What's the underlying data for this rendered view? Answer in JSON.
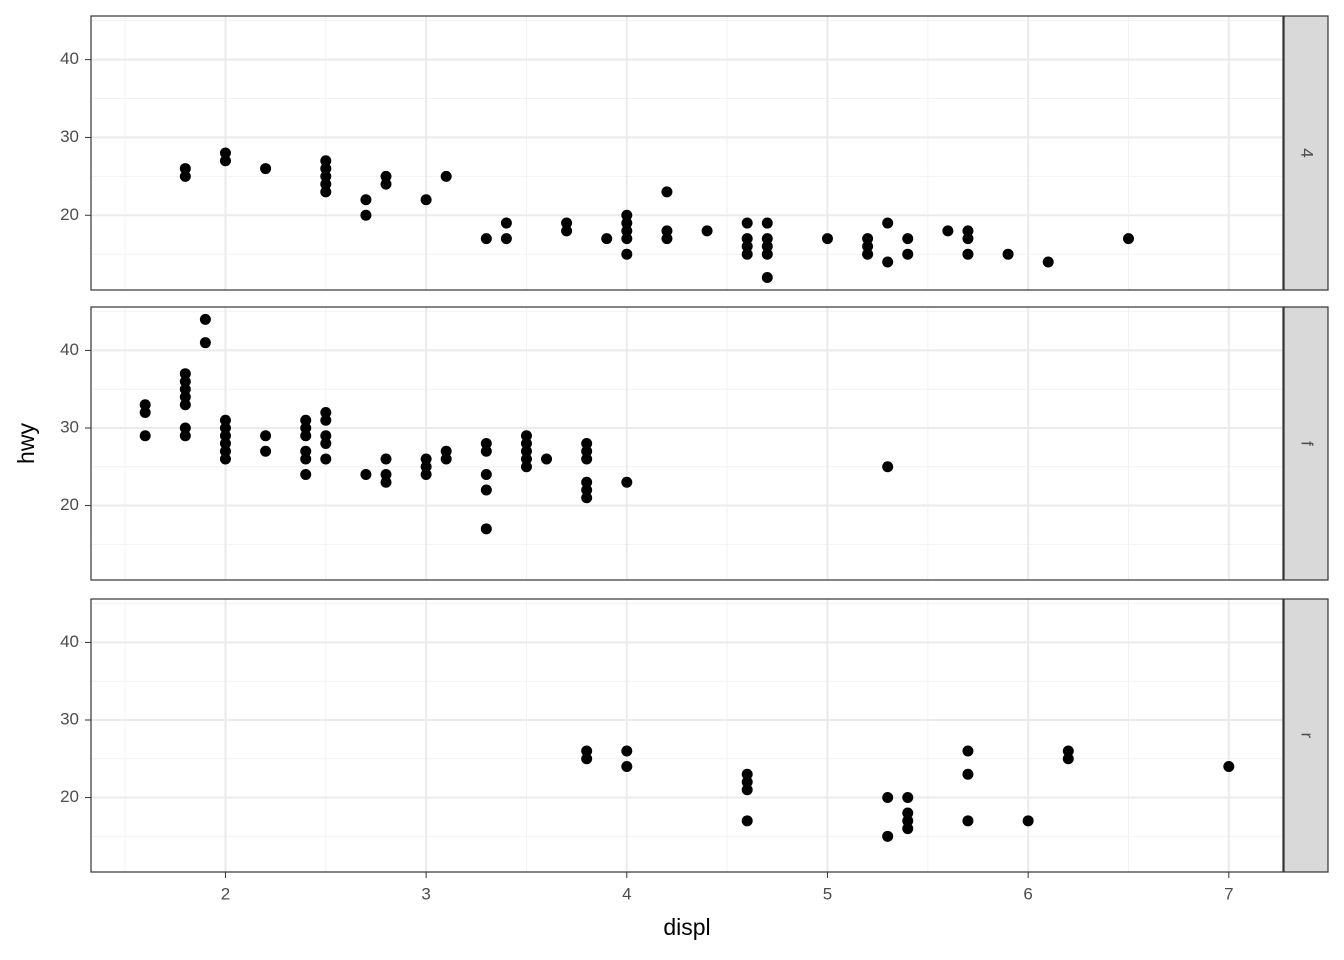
{
  "chart_data": [
    {
      "type": "scatter",
      "facet": "4",
      "color": "#000000",
      "grid": true,
      "xlim": [
        1.33,
        7.27
      ],
      "ylim": [
        10.4,
        45.6
      ],
      "xticks": [
        2,
        3,
        4,
        5,
        6,
        7
      ],
      "yticks": [
        20,
        30,
        40
      ],
      "x": [
        1.8,
        1.8,
        2.0,
        2.0,
        2.2,
        2.5,
        2.5,
        2.5,
        2.5,
        2.5,
        2.7,
        2.7,
        2.8,
        2.8,
        3.0,
        3.1,
        3.3,
        3.4,
        3.4,
        3.7,
        3.7,
        3.9,
        4.0,
        4.0,
        4.0,
        4.0,
        4.0,
        4.2,
        4.2,
        4.2,
        4.4,
        4.6,
        4.6,
        4.6,
        4.6,
        4.7,
        4.7,
        4.7,
        4.7,
        4.7,
        5.0,
        5.2,
        5.2,
        5.2,
        5.3,
        5.3,
        5.4,
        5.4,
        5.6,
        5.7,
        5.7,
        5.7,
        5.9,
        6.1,
        6.5
      ],
      "y": [
        26,
        25,
        28,
        27,
        26,
        27,
        26,
        25,
        24,
        23,
        22,
        20,
        25,
        24,
        22,
        25,
        17,
        19,
        17,
        19,
        18,
        17,
        20,
        19,
        18,
        17,
        15,
        23,
        18,
        17,
        18,
        19,
        17,
        16,
        15,
        19,
        17,
        16,
        15,
        12,
        17,
        17,
        16,
        15,
        19,
        14,
        17,
        15,
        18,
        18,
        17,
        15,
        15,
        14,
        17
      ]
    },
    {
      "type": "scatter",
      "facet": "f",
      "color": "#000000",
      "grid": true,
      "y_label": "hwy",
      "xlim": [
        1.33,
        7.27
      ],
      "ylim": [
        10.4,
        45.6
      ],
      "xticks": [
        2,
        3,
        4,
        5,
        6,
        7
      ],
      "yticks": [
        20,
        30,
        40
      ],
      "x": [
        1.6,
        1.6,
        1.6,
        1.8,
        1.8,
        1.8,
        1.8,
        1.8,
        1.8,
        1.8,
        1.9,
        1.9,
        2.0,
        2.0,
        2.0,
        2.0,
        2.0,
        2.0,
        2.2,
        2.2,
        2.4,
        2.4,
        2.4,
        2.4,
        2.4,
        2.4,
        2.5,
        2.5,
        2.5,
        2.5,
        2.5,
        2.7,
        2.8,
        2.8,
        2.8,
        3.0,
        3.0,
        3.0,
        3.1,
        3.1,
        3.3,
        3.3,
        3.3,
        3.3,
        3.3,
        3.5,
        3.5,
        3.5,
        3.5,
        3.5,
        3.6,
        3.8,
        3.8,
        3.8,
        3.8,
        3.8,
        3.8,
        4.0,
        5.3
      ],
      "y": [
        33,
        32,
        29,
        37,
        36,
        35,
        34,
        33,
        30,
        29,
        44,
        41,
        31,
        30,
        29,
        28,
        27,
        26,
        29,
        27,
        31,
        30,
        29,
        27,
        26,
        24,
        32,
        31,
        29,
        28,
        26,
        24,
        26,
        24,
        23,
        26,
        25,
        24,
        27,
        26,
        28,
        27,
        24,
        22,
        17,
        29,
        28,
        27,
        26,
        25,
        26,
        28,
        27,
        26,
        23,
        22,
        21,
        23,
        25
      ]
    },
    {
      "type": "scatter",
      "facet": "r",
      "color": "#000000",
      "grid": true,
      "x_label": "displ",
      "xlim": [
        1.33,
        7.27
      ],
      "ylim": [
        10.4,
        45.6
      ],
      "xticks": [
        2,
        3,
        4,
        5,
        6,
        7
      ],
      "yticks": [
        20,
        30,
        40
      ],
      "x": [
        3.8,
        3.8,
        4.0,
        4.0,
        4.6,
        4.6,
        4.6,
        4.6,
        5.3,
        5.3,
        5.4,
        5.4,
        5.4,
        5.4,
        5.7,
        5.7,
        5.7,
        6.0,
        6.2,
        6.2,
        7.0
      ],
      "y": [
        26,
        25,
        26,
        24,
        23,
        22,
        21,
        17,
        20,
        15,
        20,
        18,
        17,
        16,
        26,
        23,
        17,
        17,
        26,
        25,
        24
      ]
    }
  ]
}
